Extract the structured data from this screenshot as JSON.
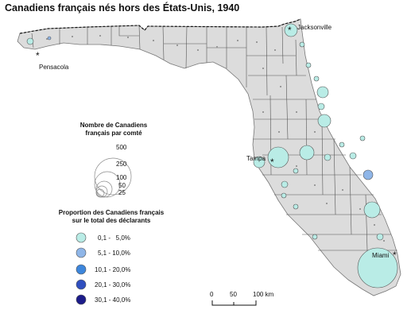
{
  "title": "Canadiens français nés hors des États-Unis, 1940",
  "cities": [
    {
      "name": "Jacksonville"
    },
    {
      "name": "Pensacola"
    },
    {
      "name": "Tampa"
    },
    {
      "name": "Miami"
    }
  ],
  "size_legend": {
    "title_line1": "Nombre de Canadiens",
    "title_line2": "français par comté",
    "values": [
      "500",
      "250",
      "100",
      "50",
      "25"
    ]
  },
  "color_legend": {
    "title_line1": "Proportion des Canadiens français",
    "title_line2": "sur le total des déclarants",
    "classes": [
      {
        "label": "0,1 -   5,0%",
        "color": "#b9ece6"
      },
      {
        "label": "5,1 - 10,0%",
        "color": "#8fb6e8"
      },
      {
        "label": "10,1 - 20,0%",
        "color": "#3d86dc"
      },
      {
        "label": "20,1 - 30,0%",
        "color": "#2f4fbf"
      },
      {
        "label": "30,1 - 40,0%",
        "color": "#1c1c8a"
      }
    ]
  },
  "scale_bar": {
    "ticks": [
      "0",
      "50",
      "100 km"
    ]
  },
  "colors": {
    "land": "#dcdcdc",
    "border": "#444444",
    "ocean": "#ffffff"
  }
}
